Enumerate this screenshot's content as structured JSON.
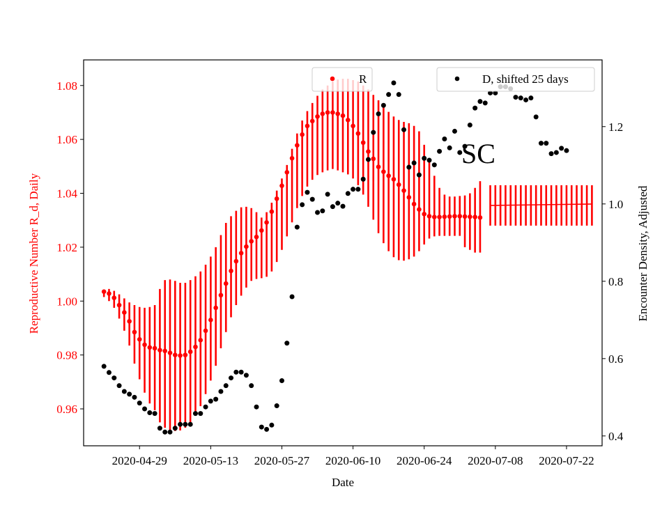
{
  "chart_data": {
    "type": "scatter",
    "annotation": "SC",
    "xlabel": "Date",
    "ylabel_left": "Reproductive Number R_d, Daily",
    "ylabel_right": "Encounter Density, Adjusted",
    "x_ticks": [
      "2020-04-29",
      "2020-05-13",
      "2020-05-27",
      "2020-06-10",
      "2020-06-24",
      "2020-07-08",
      "2020-07-22"
    ],
    "y_left_ticks": [
      "0.96",
      "0.98",
      "1.00",
      "1.02",
      "1.04",
      "1.06",
      "1.08"
    ],
    "y_right_ticks": [
      "0.4",
      "0.6",
      "0.8",
      "1.0",
      "1.2"
    ],
    "xlim": [
      "2020-04-18",
      "2020-07-29"
    ],
    "ylim_left": [
      0.9463,
      1.0895
    ],
    "ylim_right": [
      0.3745,
      1.3725
    ],
    "colors": {
      "R": "#ff0000",
      "D": "#000000",
      "left_axis_text": "#ff0000"
    },
    "legend": [
      {
        "label": "R",
        "position": "top-center"
      },
      {
        "label": "D, shifted 25 days",
        "position": "top-right"
      }
    ],
    "series": [
      {
        "name": "R",
        "axis": "left",
        "style": "points-with-error-bars",
        "start": "2020-04-22",
        "values": [
          1.0035,
          1.0028,
          1.0012,
          0.9985,
          0.9958,
          0.9925,
          0.9885,
          0.9858,
          0.9838,
          0.9828,
          0.9825,
          0.9818,
          0.9815,
          0.9808,
          0.98,
          0.9798,
          0.98,
          0.9812,
          0.983,
          0.9855,
          0.989,
          0.993,
          0.9975,
          1.0022,
          1.0065,
          1.0112,
          1.0148,
          1.0178,
          1.0202,
          1.0222,
          1.0238,
          1.0262,
          1.0292,
          1.0332,
          1.038,
          1.0428,
          1.0478,
          1.053,
          1.0578,
          1.0618,
          1.065,
          1.0668,
          1.0685,
          1.0695,
          1.07,
          1.07,
          1.0695,
          1.0688,
          1.0672,
          1.065,
          1.0622,
          1.0588,
          1.0555,
          1.0528,
          1.0498,
          1.048,
          1.0465,
          1.0452,
          1.0432,
          1.041,
          1.0385,
          1.036,
          1.034,
          1.0323,
          1.0315,
          1.0312,
          1.0312,
          1.0313,
          1.0314,
          1.0315,
          1.0315,
          1.0314,
          1.0313,
          1.0312,
          1.031
        ],
        "lower": [
          1.0015,
          1.0,
          0.9975,
          0.9935,
          0.989,
          0.9835,
          0.9768,
          0.971,
          0.966,
          0.962,
          0.9595,
          0.955,
          0.953,
          0.952,
          0.9518,
          0.952,
          0.953,
          0.955,
          0.9575,
          0.961,
          0.9655,
          0.9705,
          0.976,
          0.9825,
          0.9885,
          0.994,
          0.9985,
          1.002,
          1.005,
          1.0075,
          1.0082,
          1.0085,
          1.009,
          1.011,
          1.0145,
          1.019,
          1.024,
          1.0292,
          1.0345,
          1.039,
          1.0425,
          1.045,
          1.0468,
          1.0478,
          1.0485,
          1.049,
          1.0485,
          1.0478,
          1.047,
          1.0455,
          1.043,
          1.0395,
          1.035,
          1.0302,
          1.0252,
          1.0215,
          1.0185,
          1.0163,
          1.0152,
          1.015,
          1.0155,
          1.0165,
          1.0185,
          1.021,
          1.0232,
          1.024,
          1.0242,
          1.0242,
          1.0242,
          1.0242,
          1.0242,
          1.02,
          1.019,
          1.018,
          1.018
        ],
        "upper": [
          1.0035,
          1.0045,
          1.0038,
          1.0025,
          1.001,
          0.9995,
          0.9985,
          0.9978,
          0.9975,
          0.9978,
          0.9985,
          1.0045,
          1.0078,
          1.008,
          1.0075,
          1.0068,
          1.0068,
          1.0078,
          1.0092,
          1.011,
          1.0135,
          1.0165,
          1.02,
          1.0245,
          1.029,
          1.0315,
          1.0335,
          1.0348,
          1.035,
          1.0345,
          1.033,
          1.031,
          1.033,
          1.0365,
          1.041,
          1.0455,
          1.0505,
          1.0565,
          1.0622,
          1.067,
          1.0705,
          1.0735,
          1.0762,
          1.0785,
          1.08,
          1.0815,
          1.0822,
          1.0825,
          1.0825,
          1.082,
          1.0815,
          1.08,
          1.0785,
          1.0765,
          1.0745,
          1.0722,
          1.0702,
          1.0685,
          1.0672,
          1.0665,
          1.066,
          1.065,
          1.063,
          1.058,
          1.052,
          1.0465,
          1.042,
          1.0395,
          1.0388,
          1.0388,
          1.039,
          1.0392,
          1.04,
          1.042,
          1.0445
        ],
        "continuation": {
          "start": "2020-07-07",
          "end": "2020-07-27",
          "value_start": 1.0355,
          "value_end": 1.036,
          "lower": 1.028,
          "upper": 1.043
        }
      },
      {
        "name": "D, shifted 25 days",
        "axis": "right",
        "style": "points",
        "start": "2020-04-22",
        "values": [
          0.58,
          0.564,
          0.55,
          0.53,
          0.515,
          0.508,
          0.5,
          0.485,
          0.47,
          0.46,
          0.458,
          0.42,
          0.41,
          0.41,
          0.42,
          0.43,
          0.43,
          0.43,
          0.458,
          0.458,
          0.475,
          0.49,
          0.495,
          0.515,
          0.53,
          0.55,
          0.565,
          0.565,
          0.557,
          0.53,
          0.475,
          0.423,
          0.417,
          0.428,
          0.478,
          0.543,
          0.64,
          0.76,
          0.94,
          0.998,
          1.03,
          1.012,
          0.978,
          0.982,
          1.025,
          0.993,
          1.002,
          0.994,
          1.027,
          1.038,
          1.038,
          1.064,
          1.115,
          1.185,
          1.233,
          1.255,
          1.283,
          1.313,
          1.283,
          1.192,
          1.095,
          1.106,
          1.075,
          1.118,
          1.113,
          1.101,
          1.136,
          1.168,
          1.145,
          1.188,
          1.133,
          1.149,
          1.204,
          1.248,
          1.265,
          1.261,
          1.287,
          1.287,
          1.303,
          1.303,
          1.298,
          1.276,
          1.274,
          1.269,
          1.274,
          1.225,
          1.157,
          1.157,
          1.13,
          1.133,
          1.144,
          1.138
        ]
      }
    ]
  }
}
